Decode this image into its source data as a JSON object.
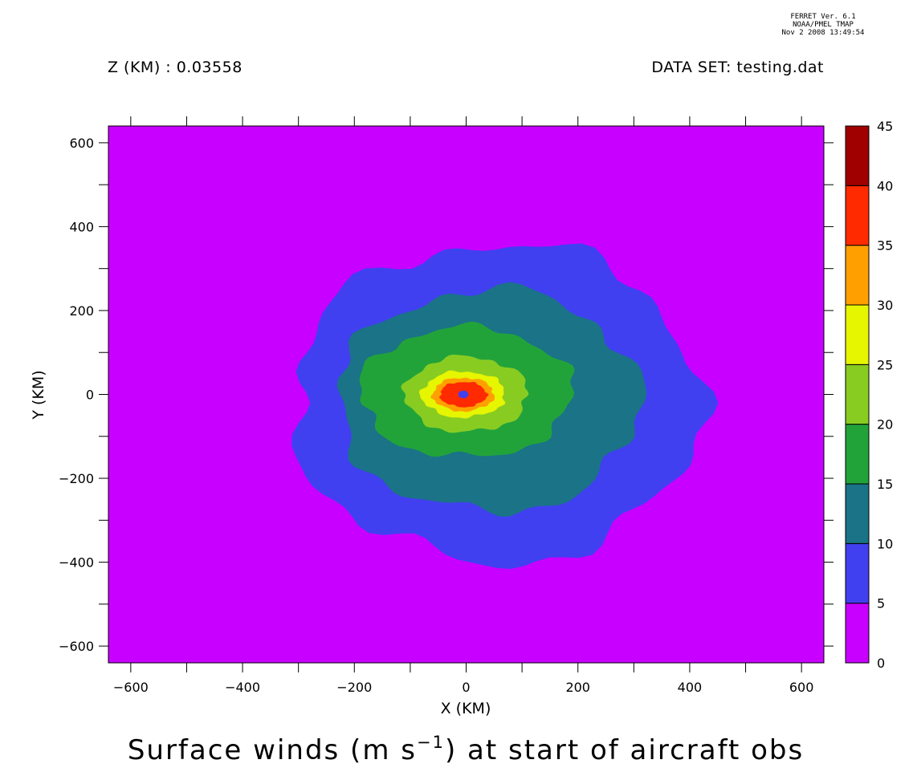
{
  "header": {
    "ferret_version": "FERRET Ver. 6.1",
    "ferret_org": "NOAA/PMEL TMAP",
    "timestamp": "Nov  2 2008 13:49:54",
    "z_level": "Z (KM) : 0.03558",
    "dataset": "DATA SET: testing.dat"
  },
  "chart_data": {
    "type": "heatmap",
    "title": "Surface winds (m s",
    "title_superscript": "−1",
    "title_suffix": ") at start of aircraft obs",
    "xlabel": "X (KM)",
    "ylabel": "Y (KM)",
    "xlim": [
      -640,
      640
    ],
    "ylim": [
      -640,
      640
    ],
    "xticks": [
      -600,
      -400,
      -200,
      0,
      200,
      400,
      600
    ],
    "yticks": [
      -600,
      -400,
      -200,
      0,
      200,
      400,
      600
    ],
    "colorbar": {
      "levels": [
        0,
        5,
        10,
        15,
        20,
        25,
        30,
        35,
        40,
        45
      ],
      "tick_labels": [
        "0",
        "5",
        "10",
        "15",
        "20",
        "25",
        "30",
        "35",
        "40",
        "45"
      ],
      "colors": [
        "#c800ff",
        "#4040f0",
        "#1a7387",
        "#22a33a",
        "#88cc22",
        "#e6f500",
        "#ffa000",
        "#ff2a00",
        "#a00000"
      ]
    },
    "contour_regions": [
      {
        "level_min": 0,
        "level_max": 5,
        "description": "background"
      },
      {
        "level_min": 5,
        "level_max": 10,
        "center": [
          55,
          -20
        ],
        "radius_x": 365,
        "radius_y": 380
      },
      {
        "level_min": 10,
        "level_max": 15,
        "center": [
          40,
          -15
        ],
        "radius_x": 270,
        "radius_y": 265
      },
      {
        "level_min": 15,
        "level_max": 20,
        "center": [
          0,
          5
        ],
        "radius_x": 190,
        "radius_y": 155
      },
      {
        "level_min": 20,
        "level_max": 25,
        "center": [
          0,
          0
        ],
        "radius_x": 110,
        "radius_y": 90
      },
      {
        "level_min": 25,
        "level_max": 30,
        "center": [
          -5,
          0
        ],
        "radius_x": 75,
        "radius_y": 55
      },
      {
        "level_min": 30,
        "level_max": 35,
        "center": [
          -5,
          0
        ],
        "radius_x": 55,
        "radius_y": 40
      },
      {
        "level_min": 35,
        "level_max": 40,
        "center": [
          -5,
          0
        ],
        "radius_x": 42,
        "radius_y": 30
      },
      {
        "level_min": 5,
        "level_max": 10,
        "center": [
          -5,
          0
        ],
        "radius_x": 9,
        "radius_y": 9
      }
    ]
  }
}
